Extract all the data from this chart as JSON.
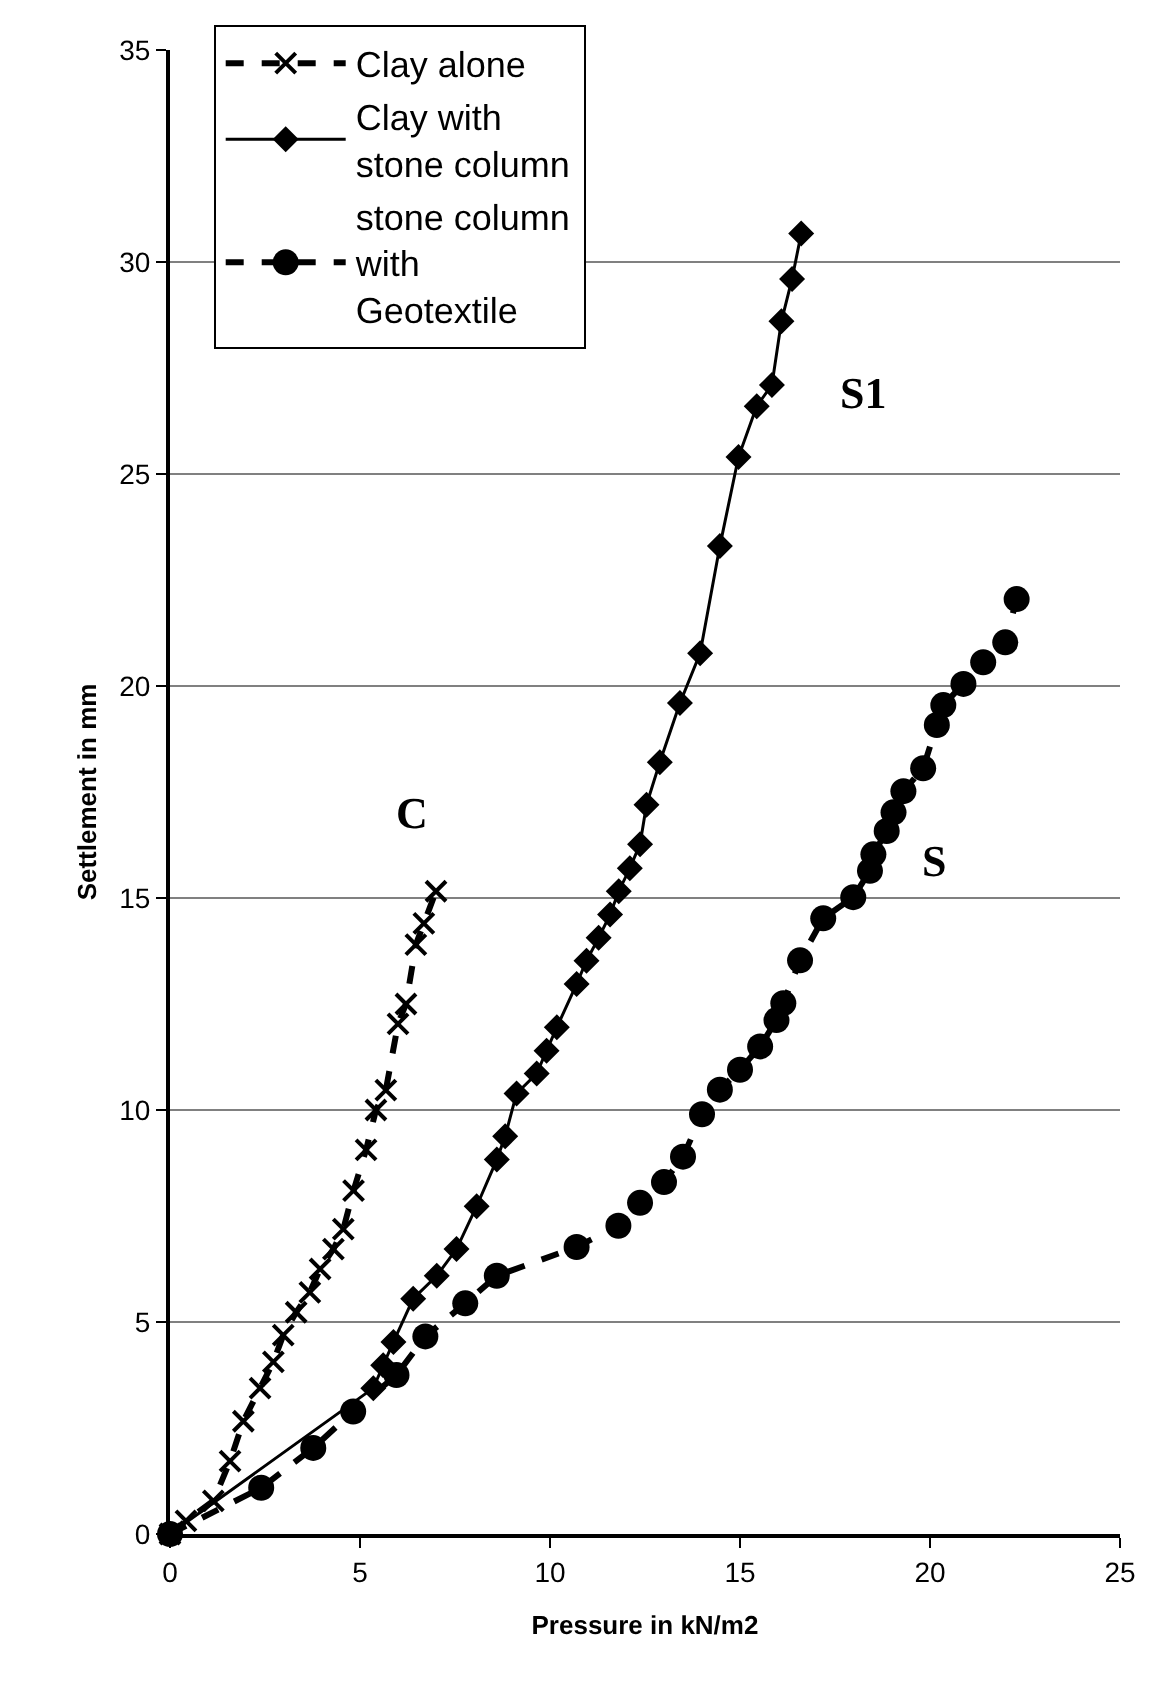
{
  "chart_data": {
    "type": "line",
    "xlabel": "Pressure in kN/m2",
    "ylabel": "Settlement in mm",
    "xlim": [
      0,
      25
    ],
    "xticks": [
      0,
      5,
      10,
      15,
      20,
      25
    ],
    "ylim": [
      0,
      35
    ],
    "yticks": [
      0,
      5,
      10,
      15,
      20,
      25,
      30,
      35
    ],
    "grid": "y",
    "legend": "top left",
    "series": [
      {
        "name": "Clay alone",
        "color": "#000000",
        "marker": "cross",
        "line_style": "dashed",
        "x": [
          0,
          0.42,
          1.14,
          1.58,
          1.93,
          2.37,
          2.72,
          2.98,
          3.32,
          3.68,
          3.95,
          4.3,
          4.56,
          4.83,
          5.16,
          5.42,
          5.68,
          6.0,
          6.21,
          6.47,
          6.68,
          7.0
        ],
        "values": [
          0,
          0.31,
          0.78,
          1.72,
          2.66,
          3.44,
          4.06,
          4.69,
          5.23,
          5.7,
          6.25,
          6.72,
          7.19,
          8.1,
          9.06,
          10.0,
          10.47,
          12.03,
          12.5,
          13.9,
          14.4,
          15.16
        ]
      },
      {
        "name": "Clay with stone column",
        "color": "#000000",
        "marker": "diamond",
        "line_style": "solid",
        "x": [
          0,
          5.35,
          5.61,
          5.88,
          6.4,
          7.02,
          7.54,
          8.07,
          8.6,
          8.82,
          9.12,
          9.65,
          9.91,
          10.18,
          10.7,
          10.96,
          11.28,
          11.58,
          11.81,
          12.1,
          12.37,
          12.54,
          12.89,
          13.42,
          13.95,
          14.47,
          14.96,
          15.44,
          15.84,
          16.09,
          16.37,
          16.61
        ],
        "values": [
          0,
          3.44,
          3.98,
          4.53,
          5.55,
          6.09,
          6.72,
          7.73,
          8.83,
          9.38,
          10.39,
          10.86,
          11.4,
          11.95,
          12.97,
          13.52,
          14.06,
          14.61,
          15.16,
          15.7,
          16.27,
          17.2,
          18.2,
          19.6,
          20.77,
          23.3,
          25.4,
          26.6,
          27.1,
          28.6,
          29.6,
          30.67
        ]
      },
      {
        "name": "stone column with Geotextile",
        "color": "#000000",
        "marker": "circle",
        "line_style": "dashed",
        "x": [
          0,
          2.4,
          3.77,
          4.82,
          5.96,
          6.72,
          7.77,
          8.6,
          10.7,
          11.8,
          12.37,
          13.0,
          13.5,
          14.0,
          14.47,
          15.0,
          15.53,
          15.96,
          16.14,
          16.58,
          17.19,
          17.98,
          18.42,
          18.51,
          18.86,
          19.04,
          19.3,
          19.82,
          20.18,
          20.35,
          20.88,
          21.4,
          21.98,
          22.28
        ],
        "values": [
          0,
          1.09,
          2.03,
          2.89,
          3.75,
          4.66,
          5.44,
          6.09,
          6.77,
          7.27,
          7.81,
          8.3,
          8.9,
          9.9,
          10.48,
          10.95,
          11.5,
          12.12,
          12.52,
          13.53,
          14.52,
          15.02,
          15.64,
          16.03,
          16.58,
          17.02,
          17.52,
          18.06,
          19.08,
          19.55,
          20.05,
          20.56,
          21.03,
          22.05
        ]
      }
    ],
    "annotations": [
      {
        "text": "C",
        "x": 7.0,
        "y": 15.16
      },
      {
        "text": "S1",
        "x": 15.84,
        "y": 27.1
      },
      {
        "text": "S",
        "x": 18.51,
        "y": 16.03
      }
    ]
  }
}
